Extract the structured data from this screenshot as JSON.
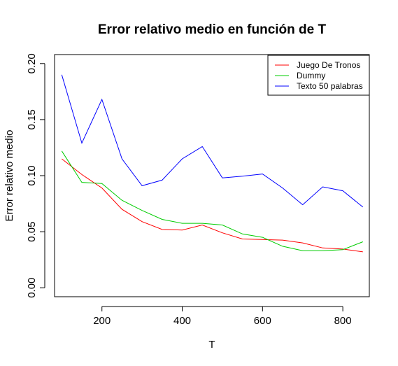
{
  "chart_data": {
    "type": "line",
    "title": "Error relativo medio en función de T",
    "xlabel": "T",
    "ylabel": "Error relativo medio",
    "xlim": [
      82,
      866
    ],
    "ylim": [
      -0.008,
      0.208
    ],
    "x_ticks": [
      200,
      400,
      600,
      800
    ],
    "x_tick_labels": [
      "200",
      "400",
      "600",
      "800"
    ],
    "y_ticks": [
      0.0,
      0.05,
      0.1,
      0.15,
      0.2
    ],
    "y_tick_labels": [
      "0.00",
      "0.05",
      "0.10",
      "0.15",
      "0.20"
    ],
    "grid": false,
    "legend_position": "top-right",
    "x": [
      100,
      150,
      200,
      250,
      300,
      350,
      400,
      450,
      500,
      550,
      600,
      650,
      700,
      750,
      800,
      850
    ],
    "series": [
      {
        "name": "Juego De Tronos",
        "color": "#ff0000",
        "values": [
          0.115,
          0.101,
          0.089,
          0.07,
          0.059,
          0.052,
          0.0515,
          0.056,
          0.049,
          0.0435,
          0.043,
          0.0425,
          0.04,
          0.0355,
          0.0345,
          0.032
        ]
      },
      {
        "name": "Dummy",
        "color": "#00cc00",
        "values": [
          0.122,
          0.094,
          0.093,
          0.078,
          0.069,
          0.061,
          0.0575,
          0.0575,
          0.056,
          0.048,
          0.045,
          0.037,
          0.033,
          0.033,
          0.034,
          0.041
        ]
      },
      {
        "name": "Texto 50 palabras",
        "color": "#0000ff",
        "values": [
          0.19,
          0.129,
          0.168,
          0.115,
          0.091,
          0.096,
          0.115,
          0.126,
          0.098,
          0.0995,
          0.1015,
          0.089,
          0.074,
          0.09,
          0.0865,
          0.072
        ]
      }
    ]
  }
}
